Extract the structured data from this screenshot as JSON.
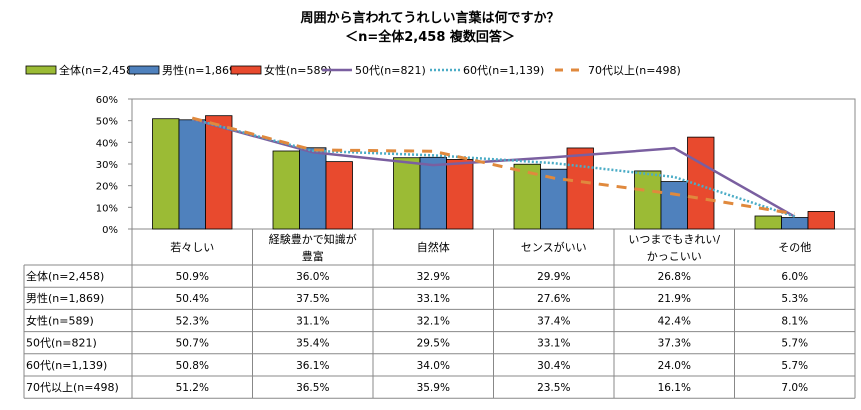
{
  "chart_data": {
    "type": "bar",
    "title": "周囲から言われてうれしい言葉は何ですか？",
    "subtitle": "＜n=全体2,458  複数回答＞",
    "categories": [
      "若々しい",
      "経験豊かで知識が豊富",
      "自然体",
      "センスがいい",
      "いつまでもきれい/かっこいい",
      "その他"
    ],
    "category_lines": [
      [
        "若々しい"
      ],
      [
        "経験豊かで知識が",
        "豊富"
      ],
      [
        "自然体"
      ],
      [
        "センスがいい"
      ],
      [
        "いつまでもきれい/",
        "かっこいい"
      ],
      [
        "その他"
      ]
    ],
    "ylim": [
      0,
      60
    ],
    "yticks": [
      "0%",
      "10%",
      "20%",
      "30%",
      "40%",
      "50%",
      "60%"
    ],
    "legend_position": "top",
    "grid": false,
    "series": [
      {
        "name": "全体(n=2,458)",
        "kind": "bar",
        "color": "#9BBB35",
        "values": [
          50.9,
          36.0,
          32.9,
          29.9,
          26.8,
          6.0
        ],
        "labels": [
          "50.9%",
          "36.0%",
          "32.9%",
          "29.9%",
          "26.8%",
          "6.0%"
        ]
      },
      {
        "name": "男性(n=1,869)",
        "kind": "bar",
        "color": "#4F81BD",
        "values": [
          50.4,
          37.5,
          33.1,
          27.6,
          21.9,
          5.3
        ],
        "labels": [
          "50.4%",
          "37.5%",
          "33.1%",
          "27.6%",
          "21.9%",
          "5.3%"
        ]
      },
      {
        "name": "女性(n=589)",
        "kind": "bar",
        "color": "#E84A2E",
        "values": [
          52.3,
          31.1,
          32.1,
          37.4,
          42.4,
          8.1
        ],
        "labels": [
          "52.3%",
          "31.1%",
          "32.1%",
          "37.4%",
          "42.4%",
          "8.1%"
        ]
      },
      {
        "name": "50代(n=821)",
        "kind": "line-solid",
        "color": "#7A5FA0",
        "values": [
          50.7,
          35.4,
          29.5,
          33.1,
          37.3,
          5.7
        ],
        "labels": [
          "50.7%",
          "35.4%",
          "29.5%",
          "33.1%",
          "37.3%",
          "5.7%"
        ]
      },
      {
        "name": "60代(n=1,139)",
        "kind": "line-dotted",
        "color": "#4BACC6",
        "values": [
          50.8,
          36.1,
          34.0,
          30.4,
          24.0,
          5.7
        ],
        "labels": [
          "50.8%",
          "36.1%",
          "34.0%",
          "30.4%",
          "24.0%",
          "5.7%"
        ]
      },
      {
        "name": "70代以上(n=498)",
        "kind": "line-dashed",
        "color": "#E0893D",
        "values": [
          51.2,
          36.5,
          35.9,
          23.5,
          16.1,
          7.0
        ],
        "labels": [
          "51.2%",
          "36.5%",
          "35.9%",
          "23.5%",
          "16.1%",
          "7.0%"
        ]
      }
    ]
  }
}
